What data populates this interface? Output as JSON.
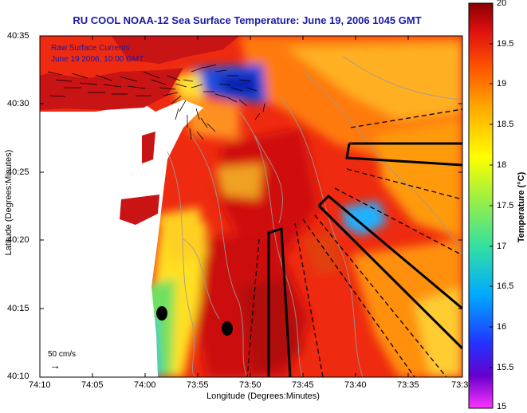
{
  "title": "RU COOL  NOAA-12  Sea Surface Temperature:  June 19, 2006 1045 GMT",
  "axes": {
    "xlabel": "Longitude (Degrees:Minutes)",
    "ylabel": "Latitude (Degrees:Minutes)",
    "xticks": [
      "74:10",
      "74:05",
      "74:00",
      "73:55",
      "73:50",
      "73:45",
      "73:40",
      "73:35",
      "73:3"
    ],
    "yticks": [
      "40:35",
      "40:30",
      "40:25",
      "40:20",
      "40:15",
      "40:10"
    ]
  },
  "legend": {
    "line1": "Raw Surface Currents",
    "line2": "June 19 2006, 10:00 GMT"
  },
  "scale": {
    "label": "50 cm/s",
    "arrow_glyph": "→"
  },
  "colorbar": {
    "title": "Temperature (°C)",
    "ticks": [
      "20",
      "19.5",
      "19",
      "18.5",
      "18",
      "17.5",
      "17",
      "16.5",
      "16",
      "15.5",
      "15"
    ],
    "range": [
      15,
      20
    ],
    "colors": [
      "#ff33ff",
      "#3333ff",
      "#00b4ff",
      "#66e066",
      "#ffff00",
      "#ff9900",
      "#ff3300",
      "#990000"
    ]
  },
  "map": {
    "land_color": "#ffffff",
    "land_left_color": "#c81414",
    "contour_color": "#9a9a9a",
    "route_color": "#000000"
  }
}
